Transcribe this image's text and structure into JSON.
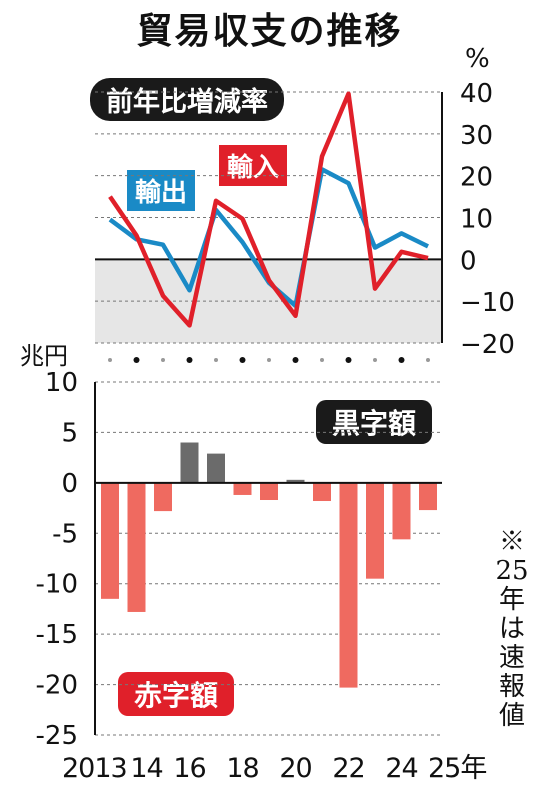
{
  "title": "貿易収支の推移",
  "top_panel_label": "前年比増減率",
  "top_unit": "%",
  "bottom_unit": "兆円",
  "surplus_label": "黒字額",
  "deficit_label": "赤字額",
  "note": "※25年は速報値",
  "colors": {
    "export": "#1a8ac6",
    "import": "#e0202a",
    "deficit_bar": "#ef6a60",
    "surplus_bar": "#6b6b6b",
    "negative_zone": "#e6e6e6"
  },
  "chart_data": [
    {
      "type": "line",
      "title": "前年比増減率",
      "unit": "%",
      "x": [
        2013,
        2014,
        2015,
        2016,
        2017,
        2018,
        2019,
        2020,
        2021,
        2022,
        2023,
        2024,
        2025
      ],
      "series": [
        {
          "name": "輸出",
          "values": [
            9.5,
            4.8,
            3.5,
            -7.4,
            11.8,
            4.1,
            -5.6,
            -11.1,
            21.5,
            18.2,
            2.8,
            6.2,
            3.1
          ]
        },
        {
          "name": "輸入",
          "values": [
            15.0,
            5.7,
            -8.7,
            -15.8,
            14.0,
            9.7,
            -5.0,
            -13.5,
            24.6,
            39.6,
            -7.0,
            1.8,
            0.3
          ]
        }
      ],
      "ylim": [
        -20,
        40
      ],
      "yticks": [
        40,
        30,
        20,
        10,
        0,
        -10,
        -20
      ],
      "ytick_labels": [
        "40",
        "30",
        "20",
        "10",
        "0",
        "−10",
        "−20"
      ],
      "grid": true
    },
    {
      "type": "bar",
      "unit": "兆円",
      "x": [
        2013,
        2014,
        2015,
        2016,
        2017,
        2018,
        2019,
        2020,
        2021,
        2022,
        2023,
        2024,
        2025
      ],
      "values": [
        -11.5,
        -12.8,
        -2.8,
        4.0,
        2.9,
        -1.2,
        -1.7,
        0.3,
        -1.8,
        -20.3,
        -9.5,
        -5.6,
        -2.7
      ],
      "ylim": [
        -25,
        10
      ],
      "yticks": [
        10,
        5,
        0,
        -5,
        -10,
        -15,
        -20,
        -25
      ],
      "ytick_labels": [
        "10",
        "5",
        "0",
        "-5",
        "-10",
        "-15",
        "-20",
        "-25"
      ],
      "xtick_labels": [
        "2013",
        "14",
        "16",
        "18",
        "20",
        "22",
        "24",
        "25年"
      ],
      "xtick_years": [
        2013,
        2014,
        2016,
        2018,
        2020,
        2022,
        2024,
        2025
      ],
      "grid": true
    }
  ]
}
